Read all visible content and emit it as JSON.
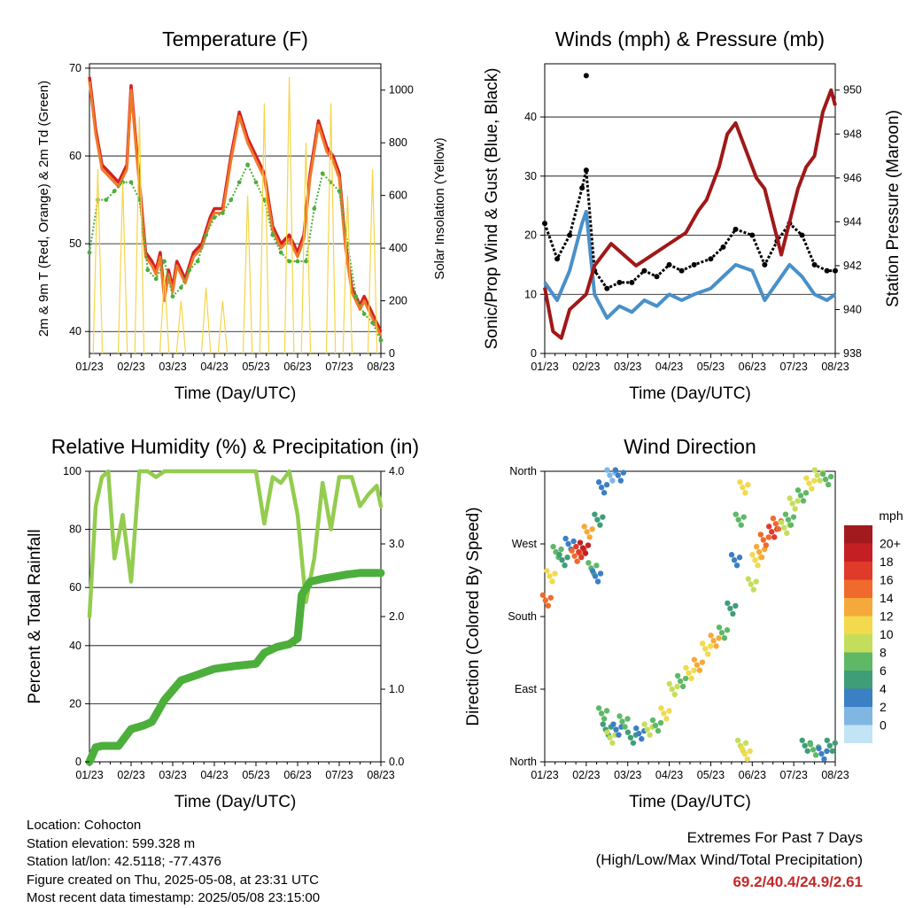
{
  "chart_data": [
    {
      "type": "line",
      "title": "Temperature (F)",
      "xlabel": "Time (Day/UTC)",
      "ylabel": "2m & 9m T (Red, Orange) & 2m Td (Green)",
      "y2label": "Solar Insolation (Yellow)",
      "categories": [
        "01/23",
        "02/23",
        "03/23",
        "04/23",
        "05/23",
        "06/23",
        "07/23",
        "08/23"
      ],
      "ylim": [
        37.5,
        70.5
      ],
      "yticks": [
        40,
        50,
        60,
        70
      ],
      "y2lim": [
        0,
        1100
      ],
      "y2ticks": [
        0,
        200,
        400,
        600,
        800,
        1000
      ],
      "grid": true,
      "series": [
        {
          "role": "2m T",
          "color": "#d32020",
          "x": [
            0,
            0.15,
            0.3,
            0.5,
            0.7,
            0.9,
            1.0,
            1.2,
            1.35,
            1.5,
            1.6,
            1.7,
            1.8,
            1.9,
            2.0,
            2.1,
            2.3,
            2.5,
            2.7,
            2.9,
            3.0,
            3.2,
            3.4,
            3.6,
            3.8,
            4.0,
            4.2,
            4.4,
            4.6,
            4.8,
            5.0,
            5.15,
            5.3,
            5.5,
            5.7,
            5.85,
            6.0,
            6.15,
            6.3,
            6.5,
            6.6,
            6.8,
            7.0
          ],
          "y": [
            69,
            63,
            59,
            58,
            57,
            59,
            68,
            57,
            49,
            48,
            47,
            49,
            44,
            47,
            45,
            48,
            46,
            49,
            50,
            53,
            54,
            54,
            60,
            65,
            62,
            60,
            58,
            52,
            50,
            51,
            49,
            51,
            58,
            64,
            61,
            60,
            58,
            50,
            45,
            43,
            44,
            42,
            40
          ]
        },
        {
          "role": "9m T",
          "color": "#f07a2a",
          "x": [
            0,
            0.15,
            0.3,
            0.5,
            0.7,
            0.9,
            1.0,
            1.2,
            1.35,
            1.5,
            1.6,
            1.7,
            1.8,
            1.9,
            2.0,
            2.1,
            2.3,
            2.5,
            2.7,
            2.9,
            3.0,
            3.2,
            3.4,
            3.6,
            3.8,
            4.0,
            4.2,
            4.4,
            4.6,
            4.8,
            5.0,
            5.15,
            5.3,
            5.5,
            5.7,
            5.85,
            6.0,
            6.15,
            6.3,
            6.5,
            6.6,
            6.8,
            7.0
          ],
          "y": [
            68.5,
            62.5,
            58.5,
            57.5,
            56.5,
            58.5,
            67.5,
            56.5,
            48.5,
            47.5,
            46.5,
            48.5,
            43.5,
            46.5,
            44.5,
            47.5,
            45.5,
            48.5,
            49.5,
            52.5,
            53.5,
            53.5,
            59.5,
            64.5,
            61.5,
            59.5,
            57.5,
            51.5,
            49.5,
            50.5,
            48.5,
            50.5,
            57.5,
            63.5,
            60.5,
            59.5,
            57.5,
            49.5,
            44.5,
            42.5,
            43.5,
            41.5,
            39.5
          ]
        },
        {
          "role": "2m Td",
          "color": "#4caf3c",
          "x": [
            0,
            0.2,
            0.4,
            0.6,
            0.8,
            1.0,
            1.2,
            1.4,
            1.6,
            1.8,
            2.0,
            2.2,
            2.4,
            2.6,
            2.8,
            3.0,
            3.2,
            3.4,
            3.6,
            3.8,
            4.0,
            4.2,
            4.4,
            4.6,
            4.8,
            5.0,
            5.2,
            5.4,
            5.6,
            5.8,
            6.0,
            6.2,
            6.4,
            6.6,
            6.8,
            7.0
          ],
          "y": [
            49,
            55,
            55,
            56,
            57,
            57,
            55,
            47,
            46,
            48,
            44,
            45,
            47,
            48,
            51,
            53,
            53.5,
            55,
            57,
            59,
            57,
            55,
            51,
            49,
            48,
            48,
            48,
            54,
            58,
            57,
            56,
            50,
            44,
            42,
            41,
            39
          ]
        },
        {
          "role": "Solar Insolation",
          "color": "#f5d547",
          "axis": "y2",
          "x": [
            0.2,
            0.8,
            1.2,
            1.8,
            2.2,
            2.8,
            3.2,
            3.8,
            4.2,
            4.8,
            5.2,
            5.8,
            6.2,
            6.8
          ],
          "y": [
            700,
            650,
            900,
            300,
            200,
            250,
            200,
            600,
            950,
            1050,
            800,
            950,
            600,
            700
          ]
        }
      ]
    },
    {
      "type": "line",
      "title": "Winds (mph) & Pressure (mb)",
      "xlabel": "Time (Day/UTC)",
      "ylabel": "Sonic/Prop Wind & Gust (Blue, Black)",
      "y2label": "Station Pressure (Maroon)",
      "categories": [
        "01/23",
        "02/23",
        "03/23",
        "04/23",
        "05/23",
        "06/23",
        "07/23",
        "08/23"
      ],
      "ylim": [
        0,
        49
      ],
      "yticks": [
        0,
        10,
        20,
        30,
        40
      ],
      "y2lim": [
        938,
        951.2
      ],
      "y2ticks": [
        938,
        940,
        942,
        944,
        946,
        948,
        950
      ],
      "grid": true,
      "series": [
        {
          "role": "Wind",
          "color": "#4a90c8",
          "x": [
            0,
            0.3,
            0.6,
            0.9,
            1.0,
            1.2,
            1.5,
            1.8,
            2.1,
            2.4,
            2.7,
            3.0,
            3.3,
            3.6,
            4.0,
            4.3,
            4.6,
            5.0,
            5.3,
            5.6,
            5.9,
            6.2,
            6.5,
            6.8,
            7.0
          ],
          "y": [
            12,
            9,
            14,
            22,
            24,
            10,
            6,
            8,
            7,
            9,
            8,
            10,
            9,
            10,
            11,
            13,
            15,
            14,
            9,
            12,
            15,
            13,
            10,
            9,
            10
          ]
        },
        {
          "role": "Gust",
          "color": "#000000",
          "x": [
            0,
            0.3,
            0.6,
            0.9,
            1.0,
            1.2,
            1.5,
            1.8,
            2.1,
            2.4,
            2.7,
            3.0,
            3.3,
            3.6,
            4.0,
            4.3,
            4.6,
            5.0,
            5.3,
            5.6,
            5.9,
            6.2,
            6.5,
            6.8,
            7.0
          ],
          "y": [
            22,
            16,
            20,
            28,
            31,
            14,
            11,
            12,
            12,
            14,
            13,
            15,
            14,
            15,
            16,
            18,
            21,
            20,
            15,
            19,
            22,
            20,
            15,
            14,
            14
          ]
        },
        {
          "role": "Peak gust",
          "color": "#000000",
          "x": [
            1.0
          ],
          "y": [
            47
          ]
        },
        {
          "role": "Pressure",
          "color": "#a01818",
          "axis": "y2",
          "x": [
            0,
            0.2,
            0.4,
            0.6,
            1.0,
            1.2,
            1.6,
            1.9,
            2.2,
            2.6,
            3.0,
            3.4,
            3.7,
            3.9,
            4.2,
            4.4,
            4.6,
            4.9,
            5.1,
            5.3,
            5.5,
            5.7,
            5.9,
            6.1,
            6.3,
            6.5,
            6.7,
            6.9,
            7.0
          ],
          "y": [
            941,
            939,
            938.7,
            940,
            940.7,
            942,
            943,
            942.5,
            942,
            942.5,
            943,
            943.5,
            944.5,
            945,
            946.5,
            948,
            948.5,
            947,
            946,
            945.5,
            944,
            942.5,
            944,
            945.5,
            946.5,
            947,
            949,
            950,
            949.3
          ]
        }
      ]
    },
    {
      "type": "line",
      "title": "Relative Humidity (%) & Precipitation (in)",
      "xlabel": "Time (Day/UTC)",
      "ylabel": "Percent & Total Rainfall",
      "categories": [
        "01/23",
        "02/23",
        "03/23",
        "04/23",
        "05/23",
        "06/23",
        "07/23",
        "08/23"
      ],
      "ylim": [
        0,
        100
      ],
      "yticks": [
        0,
        20,
        40,
        60,
        80,
        100
      ],
      "y2lim": [
        0,
        4
      ],
      "y2ticks": [
        "0.0",
        "1.0",
        "2.0",
        "3.0",
        "4.0"
      ],
      "grid": true,
      "series": [
        {
          "role": "Relative Humidity",
          "color": "#93cc4f",
          "x": [
            0,
            0.15,
            0.3,
            0.45,
            0.6,
            0.8,
            1.0,
            1.2,
            1.4,
            1.6,
            1.8,
            2.0,
            2.2,
            2.5,
            3.0,
            3.5,
            4.0,
            4.2,
            4.4,
            4.6,
            4.8,
            5.0,
            5.2,
            5.4,
            5.6,
            5.8,
            6.0,
            6.3,
            6.5,
            6.7,
            6.9,
            7.0
          ],
          "y": [
            50,
            88,
            98,
            100,
            70,
            85,
            62,
            100,
            100,
            98,
            100,
            100,
            100,
            100,
            100,
            100,
            100,
            82,
            98,
            96,
            100,
            85,
            55,
            70,
            96,
            80,
            98,
            98,
            88,
            92,
            95,
            88
          ]
        },
        {
          "role": "Total Precipitation",
          "color": "#4caf3c",
          "axis": "y2",
          "x": [
            0,
            0.15,
            0.3,
            0.7,
            1.0,
            1.3,
            1.5,
            1.8,
            2.2,
            2.6,
            3.0,
            3.5,
            4.0,
            4.2,
            4.5,
            4.8,
            5.0,
            5.1,
            5.3,
            5.6,
            5.9,
            6.2,
            6.5,
            7.0
          ],
          "y": [
            0,
            0.2,
            0.22,
            0.22,
            0.45,
            0.5,
            0.55,
            0.85,
            1.12,
            1.2,
            1.28,
            1.32,
            1.35,
            1.5,
            1.58,
            1.62,
            1.7,
            2.3,
            2.48,
            2.52,
            2.55,
            2.58,
            2.6,
            2.6
          ]
        }
      ]
    },
    {
      "type": "scatter",
      "title": "Wind Direction",
      "xlabel": "Time (Day/UTC)",
      "ylabel": "Direction (Colored By Speed)",
      "categories": [
        "01/23",
        "02/23",
        "03/23",
        "04/23",
        "05/23",
        "06/23",
        "07/23",
        "08/23"
      ],
      "yticks": [
        "North",
        "East",
        "South",
        "West",
        "North"
      ],
      "legend": {
        "title": "mph",
        "labels": [
          "20+",
          "18",
          "16",
          "14",
          "12",
          "10",
          "8",
          "6",
          "4",
          "2",
          "0"
        ],
        "colors": [
          "#a31a1e",
          "#c42024",
          "#e03a2b",
          "#ef6a2c",
          "#f6a93b",
          "#f2d94e",
          "#c4de5c",
          "#5fb866",
          "#3f9e78",
          "#3b7fc4",
          "#7fb7e2",
          "#c2e4f5"
        ]
      },
      "points": [
        {
          "x": 0.05,
          "y": 200,
          "mph": 16
        },
        {
          "x": 0.15,
          "y": 230,
          "mph": 12
        },
        {
          "x": 0.3,
          "y": 260,
          "mph": 8
        },
        {
          "x": 0.45,
          "y": 250,
          "mph": 6
        },
        {
          "x": 0.6,
          "y": 270,
          "mph": 4
        },
        {
          "x": 0.75,
          "y": 255,
          "mph": 16
        },
        {
          "x": 0.85,
          "y": 260,
          "mph": 18
        },
        {
          "x": 0.95,
          "y": 265,
          "mph": 20
        },
        {
          "x": 1.05,
          "y": 285,
          "mph": 14
        },
        {
          "x": 1.15,
          "y": 240,
          "mph": 8
        },
        {
          "x": 1.25,
          "y": 230,
          "mph": 4
        },
        {
          "x": 1.3,
          "y": 300,
          "mph": 6
        },
        {
          "x": 1.4,
          "y": 340,
          "mph": 4
        },
        {
          "x": 1.6,
          "y": 355,
          "mph": 2
        },
        {
          "x": 1.8,
          "y": 355,
          "mph": 4
        },
        {
          "x": 1.4,
          "y": 60,
          "mph": 8
        },
        {
          "x": 1.5,
          "y": 40,
          "mph": 6
        },
        {
          "x": 1.6,
          "y": 30,
          "mph": 10
        },
        {
          "x": 1.75,
          "y": 40,
          "mph": 4
        },
        {
          "x": 1.9,
          "y": 50,
          "mph": 8
        },
        {
          "x": 2.1,
          "y": 30,
          "mph": 6
        },
        {
          "x": 2.3,
          "y": 35,
          "mph": 4
        },
        {
          "x": 2.5,
          "y": 40,
          "mph": 10
        },
        {
          "x": 2.7,
          "y": 45,
          "mph": 8
        },
        {
          "x": 2.9,
          "y": 60,
          "mph": 12
        },
        {
          "x": 3.1,
          "y": 90,
          "mph": 10
        },
        {
          "x": 3.3,
          "y": 100,
          "mph": 8
        },
        {
          "x": 3.5,
          "y": 110,
          "mph": 12
        },
        {
          "x": 3.7,
          "y": 120,
          "mph": 14
        },
        {
          "x": 3.9,
          "y": 140,
          "mph": 12
        },
        {
          "x": 4.1,
          "y": 150,
          "mph": 14
        },
        {
          "x": 4.3,
          "y": 160,
          "mph": 8
        },
        {
          "x": 4.5,
          "y": 190,
          "mph": 6
        },
        {
          "x": 4.6,
          "y": 250,
          "mph": 4
        },
        {
          "x": 4.7,
          "y": 300,
          "mph": 8
        },
        {
          "x": 4.8,
          "y": 340,
          "mph": 12
        },
        {
          "x": 4.75,
          "y": 20,
          "mph": 10
        },
        {
          "x": 4.85,
          "y": 10,
          "mph": 12
        },
        {
          "x": 5.0,
          "y": 220,
          "mph": 10
        },
        {
          "x": 5.1,
          "y": 250,
          "mph": 12
        },
        {
          "x": 5.2,
          "y": 260,
          "mph": 14
        },
        {
          "x": 5.3,
          "y": 275,
          "mph": 16
        },
        {
          "x": 5.5,
          "y": 285,
          "mph": 18
        },
        {
          "x": 5.6,
          "y": 295,
          "mph": 16
        },
        {
          "x": 5.8,
          "y": 290,
          "mph": 10
        },
        {
          "x": 5.9,
          "y": 300,
          "mph": 8
        },
        {
          "x": 6.0,
          "y": 320,
          "mph": 10
        },
        {
          "x": 6.2,
          "y": 330,
          "mph": 8
        },
        {
          "x": 6.4,
          "y": 345,
          "mph": 12
        },
        {
          "x": 6.6,
          "y": 355,
          "mph": 10
        },
        {
          "x": 6.8,
          "y": 350,
          "mph": 8
        },
        {
          "x": 6.3,
          "y": 20,
          "mph": 6
        },
        {
          "x": 6.5,
          "y": 15,
          "mph": 8
        },
        {
          "x": 6.7,
          "y": 10,
          "mph": 4
        },
        {
          "x": 6.9,
          "y": 20,
          "mph": 6
        }
      ]
    }
  ],
  "info": {
    "location": "Location: Cohocton",
    "elevation": "Station elevation: 599.328 m",
    "latlon": "Station lat/lon: 42.5118; -77.4376",
    "created": "Figure created on Thu, 2025-05-08, at 23:31 UTC",
    "recent": "Most recent data timestamp: 2025/05/08 23:15:00"
  },
  "extremes": {
    "line1": "Extremes For Past 7 Days",
    "line2": "(High/Low/Max Wind/Total Precipitation)",
    "values": "69.2/40.4/24.9/2.61"
  }
}
